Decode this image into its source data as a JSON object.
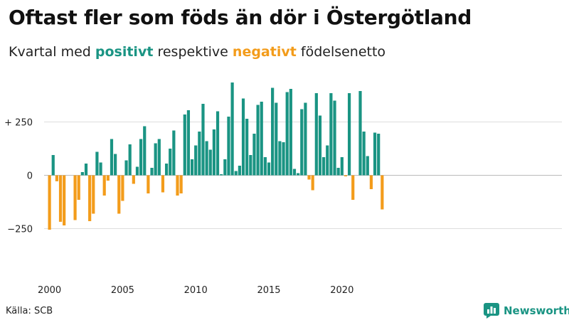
{
  "title": "Oftast fler som föds än dör i Östergötland",
  "subtitle": {
    "prefix": "Kvartal med",
    "positive": "positivt",
    "middle": "respektive",
    "negative": "negativt",
    "suffix": "födelsenetto"
  },
  "source": "Källa: SCB",
  "brand": "Newsworthy",
  "colors": {
    "positive": "#1a9483",
    "negative": "#f39c1b",
    "grid": "#dddddd",
    "axis": "#bbbbbb"
  },
  "chart_data": {
    "type": "bar",
    "title": "Oftast fler som föds än dör i Östergötland",
    "xlabel": "",
    "ylabel": "",
    "start_year": 2000,
    "quarters_per_year": 4,
    "ylim": [
      -400,
      450
    ],
    "yticks": [
      {
        "value": 250,
        "label": "+ 250"
      },
      {
        "value": 0,
        "label": "0"
      },
      {
        "value": -250,
        "label": "−250"
      }
    ],
    "xticks": [
      {
        "index": 0,
        "label": "2000"
      },
      {
        "index": 20,
        "label": "2005"
      },
      {
        "index": 40,
        "label": "2010"
      },
      {
        "index": 60,
        "label": "2015"
      },
      {
        "index": 80,
        "label": "2020"
      }
    ],
    "values": [
      -255,
      95,
      -28,
      -218,
      -235,
      0,
      0,
      -210,
      -115,
      15,
      55,
      -215,
      -180,
      110,
      60,
      -95,
      -25,
      170,
      100,
      -180,
      -120,
      70,
      145,
      -40,
      40,
      170,
      230,
      -85,
      35,
      150,
      170,
      -80,
      55,
      125,
      210,
      -95,
      -85,
      285,
      305,
      75,
      140,
      205,
      335,
      160,
      120,
      215,
      300,
      5,
      75,
      275,
      435,
      20,
      45,
      360,
      265,
      95,
      195,
      330,
      345,
      85,
      60,
      410,
      340,
      160,
      155,
      390,
      405,
      30,
      10,
      310,
      340,
      -20,
      -70,
      385,
      280,
      85,
      140,
      385,
      350,
      35,
      85,
      -5,
      385,
      -115,
      0,
      395,
      205,
      90,
      -65,
      200,
      195,
      -160
    ]
  }
}
